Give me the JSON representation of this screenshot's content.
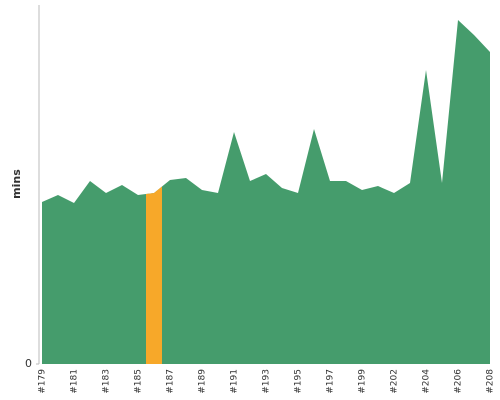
{
  "chart_data": {
    "type": "area",
    "y_label": "mins",
    "categories": [
      "#179",
      null,
      "#181",
      null,
      "#183",
      null,
      "#185",
      null,
      "#187",
      null,
      "#189",
      null,
      "#191",
      null,
      "#193",
      null,
      "#195",
      null,
      "#197",
      null,
      "#199",
      null,
      "#202",
      null,
      "#204",
      null,
      "#206",
      null,
      "#208"
    ],
    "values": [
      162,
      169,
      161,
      183,
      171,
      179,
      169,
      171,
      184,
      186,
      174,
      171,
      232,
      183,
      190,
      176,
      171,
      235,
      183,
      183,
      174,
      178,
      171,
      181,
      294,
      181,
      344,
      329,
      312
    ],
    "color": "#459c6c",
    "highlight_index": 7,
    "highlight_color": "#f7a829",
    "ylim": [
      0,
      359
    ],
    "yticks": [
      0
    ]
  }
}
